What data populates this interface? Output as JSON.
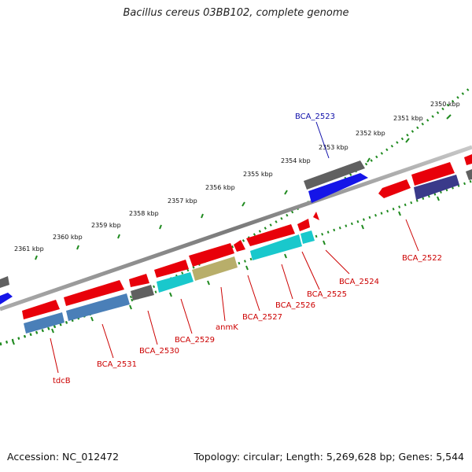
{
  "title": "Bacillus cereus 03BB102, complete genome",
  "accession": "Accession: NC_012472",
  "summary": "Topology: circular; Length: 5,269,628 bp; Genes: 5,544",
  "scale_labels": [
    "2350 kbp",
    "2351 kbp",
    "2352 kbp",
    "2353 kbp",
    "2354 kbp",
    "2355 kbp",
    "2356 kbp",
    "2357 kbp",
    "2358 kbp",
    "2359 kbp",
    "2360 kbp",
    "2361 kbp"
  ],
  "gene_labels": {
    "bca2523": "BCA_2523",
    "bca2522": "BCA_2522",
    "bca2524": "BCA_2524",
    "bca2525": "BCA_2525",
    "bca2526": "BCA_2526",
    "bca2527": "BCA_2527",
    "anmk": "anmK",
    "bca2529": "BCA_2529",
    "bca2530": "BCA_2530",
    "bca2531": "BCA_2531",
    "tdcb": "tdcB"
  },
  "colors": {
    "forward_cds": "#e8000a",
    "forward_other": "#606060",
    "reverse_red": "#e8000a",
    "steel_blue": "#4a7fb8",
    "cyan": "#19c8cc",
    "olive": "#b8ae6a",
    "dark_gray": "#606060",
    "navy": "#3a3a8a",
    "blue": "#1515e8",
    "ticks": "#1f8a1f",
    "label_red": "#cc0000",
    "label_blue": "#1010aa"
  }
}
